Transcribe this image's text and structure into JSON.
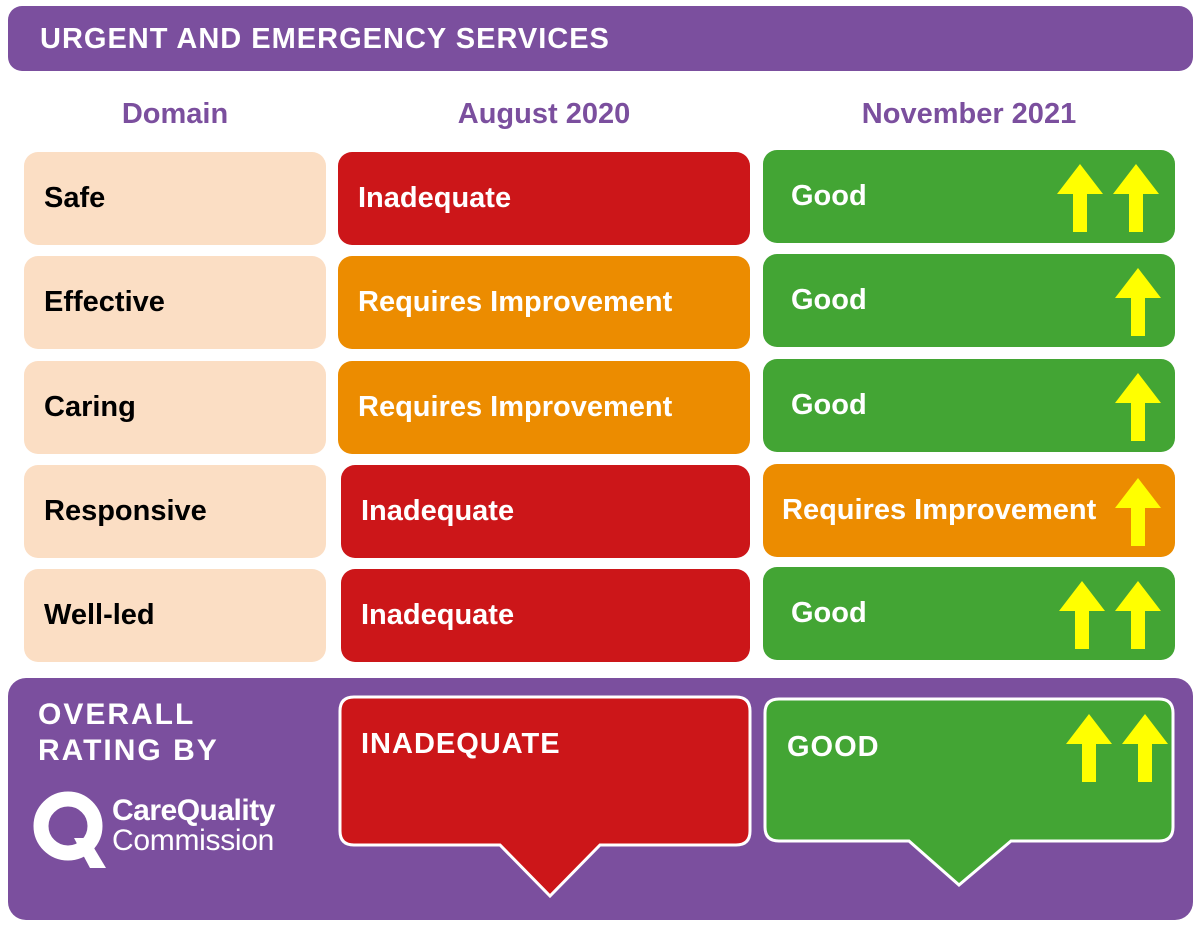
{
  "header": {
    "title": "URGENT AND EMERGENCY SERVICES"
  },
  "columns": {
    "domain": "Domain",
    "before": "August 2020",
    "after": "November 2021"
  },
  "rows": [
    {
      "domain": "Safe",
      "before": "Inadequate",
      "after": "Good",
      "improvement_steps": 2
    },
    {
      "domain": "Effective",
      "before": "Requires Improvement",
      "after": "Good",
      "improvement_steps": 1
    },
    {
      "domain": "Caring",
      "before": "Requires Improvement",
      "after": "Good",
      "improvement_steps": 1
    },
    {
      "domain": "Responsive",
      "before": "Inadequate",
      "after": "Requires Improvement",
      "improvement_steps": 1
    },
    {
      "domain": "Well-led",
      "before": "Inadequate",
      "after": "Good",
      "improvement_steps": 2
    }
  ],
  "overall": {
    "label_line1": "OVERALL",
    "label_line2": "RATING BY",
    "before": "INADEQUATE",
    "after": "GOOD",
    "improvement_steps": 2
  },
  "logo": {
    "line1": "CareQuality",
    "line2": "Commission",
    "icon": "cqc-q-icon"
  },
  "colors": {
    "purple": "#7b4f9e",
    "peach": "#fbdec4",
    "inadequate": "#cc1619",
    "requires_improvement": "#ec8c00",
    "good": "#43a534",
    "arrow": "#ffff00"
  }
}
